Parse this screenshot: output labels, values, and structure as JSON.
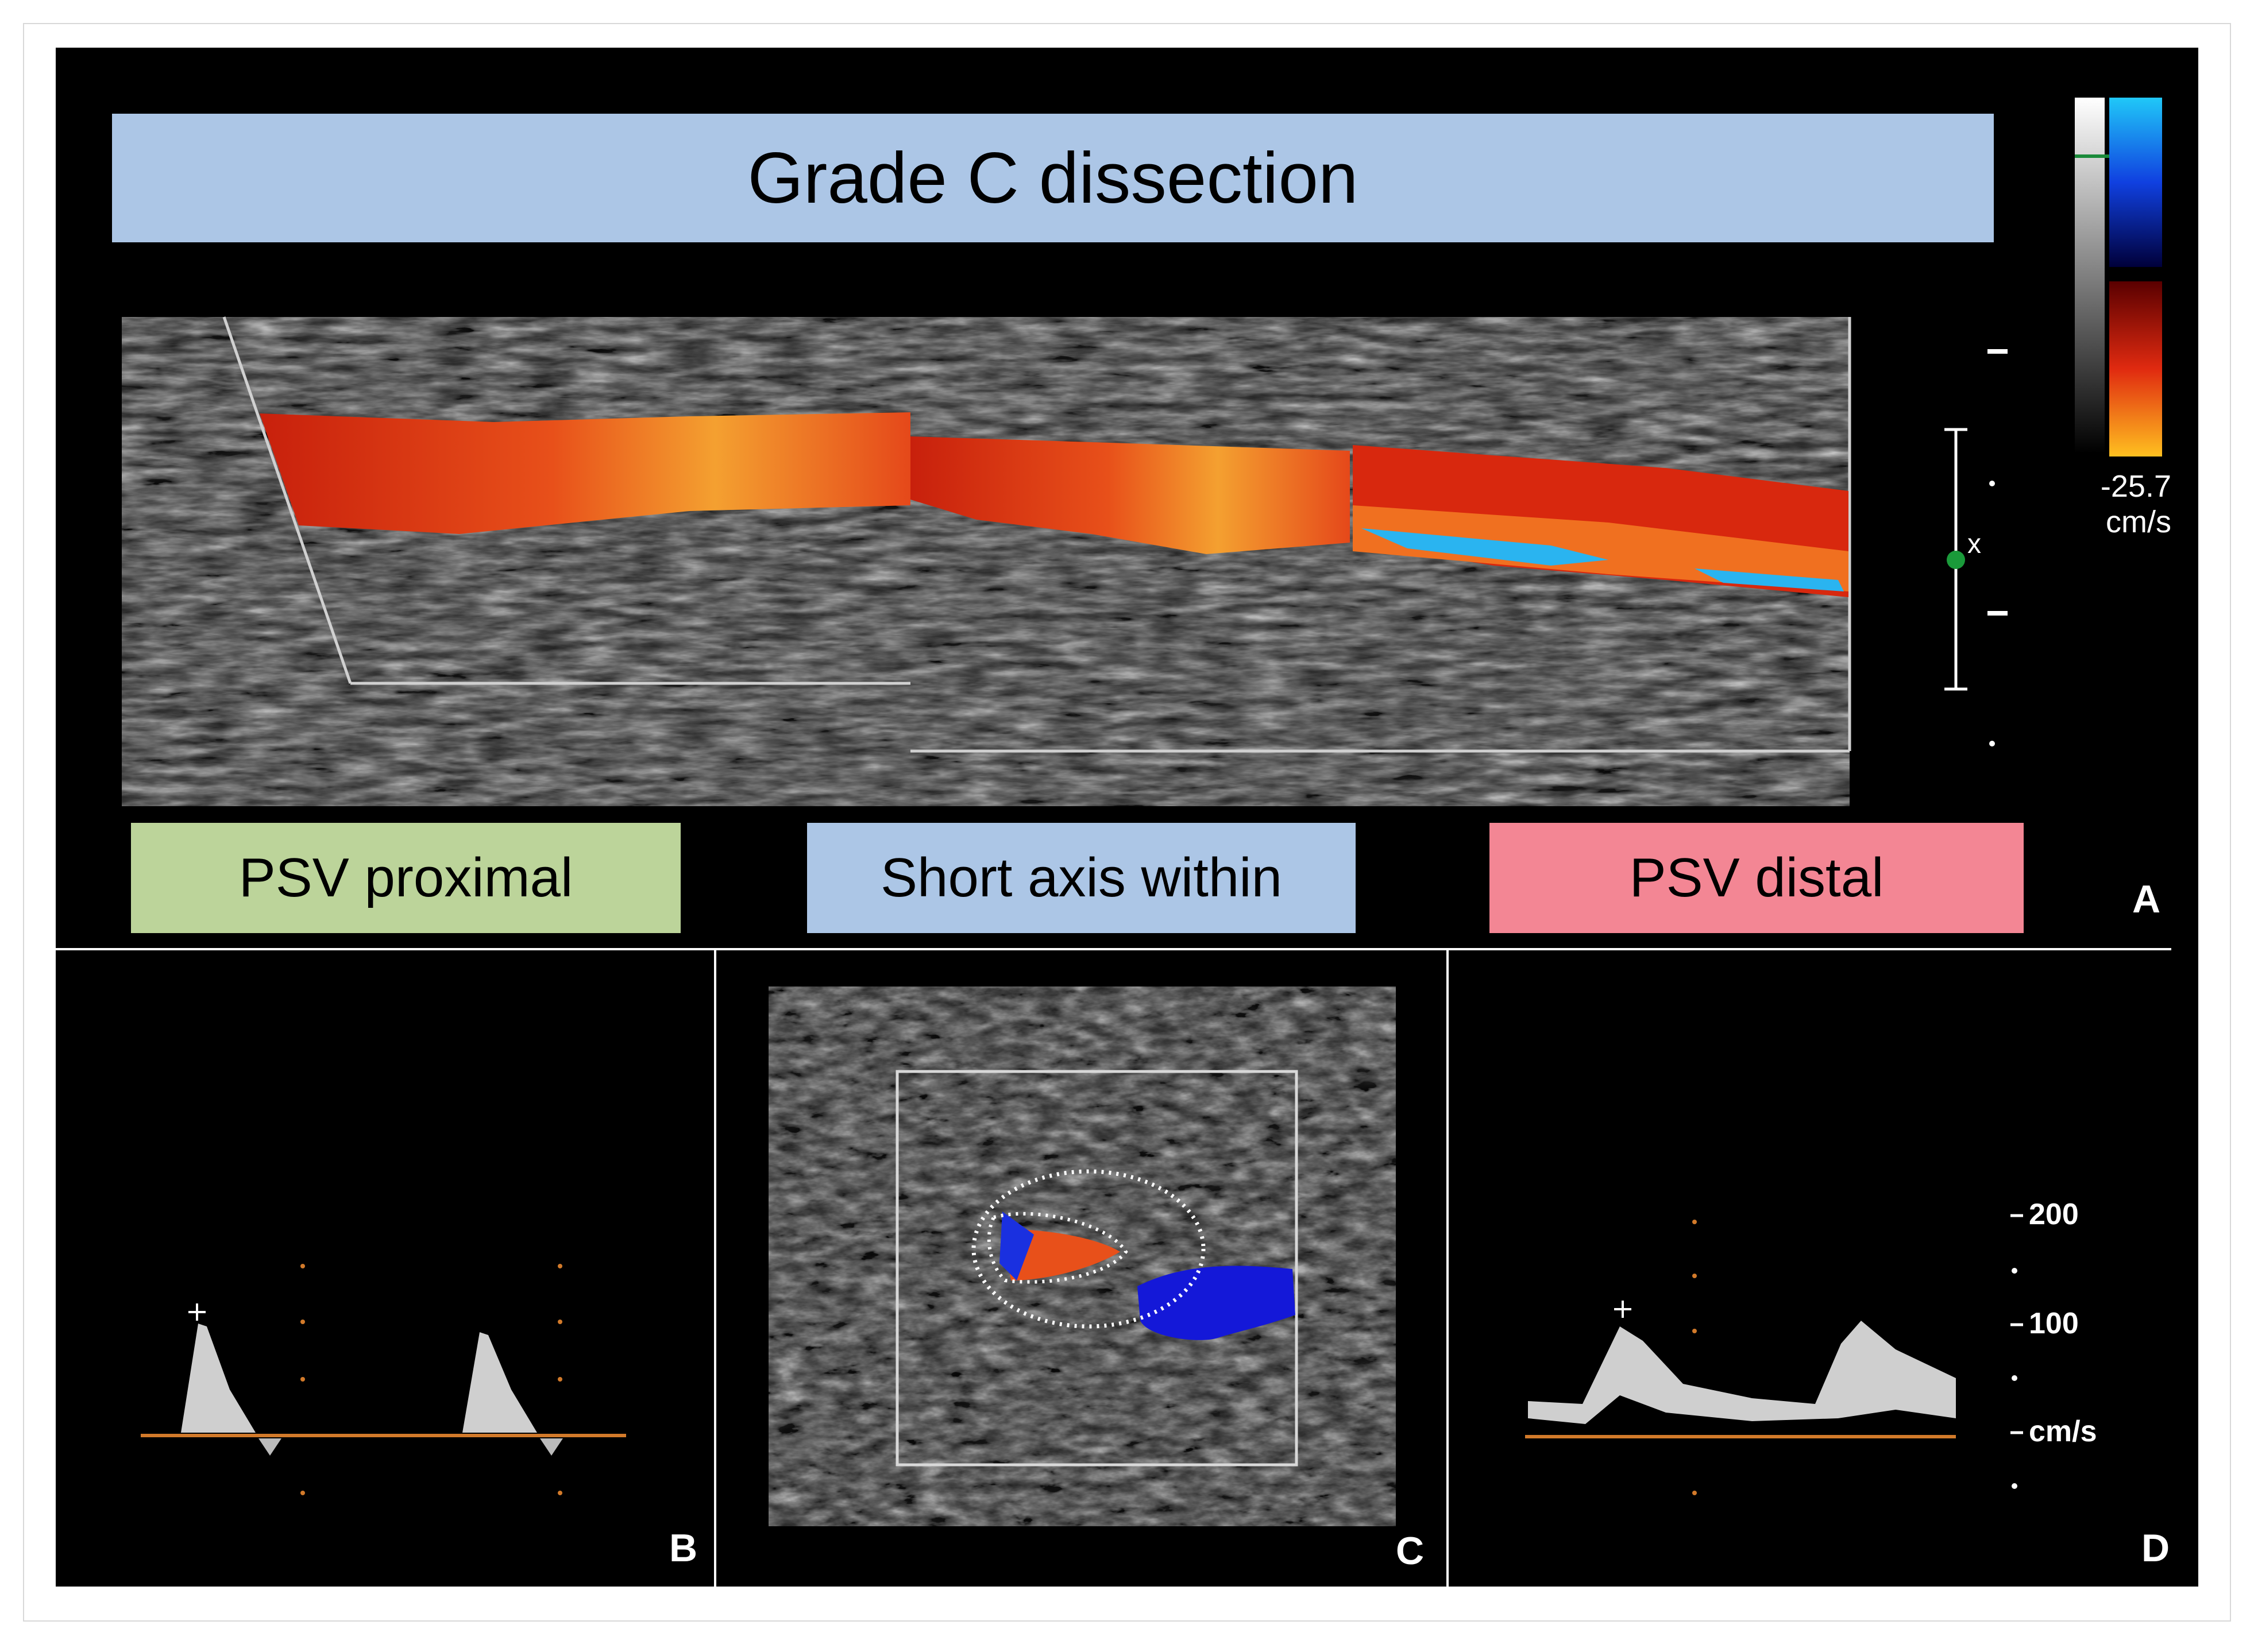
{
  "title": "Grade C dissection",
  "labels": {
    "proximal": "PSV proximal",
    "within": "Short axis within",
    "distal": "PSV distal"
  },
  "panels": {
    "a": "A",
    "b": "B",
    "c": "C",
    "d": "D"
  },
  "colorbar": {
    "value": "-25.7",
    "unit": "cm/s"
  },
  "depth_marker": "x",
  "doppler_scale": {
    "high": "200",
    "mid": "100",
    "unit": "cm/s"
  },
  "colors": {
    "title_bg": "#acc6e6",
    "proximal_bg": "#bcd49a",
    "within_bg": "#acc6e6",
    "distal_bg": "#f38694",
    "baseline": "#d27a2a"
  }
}
